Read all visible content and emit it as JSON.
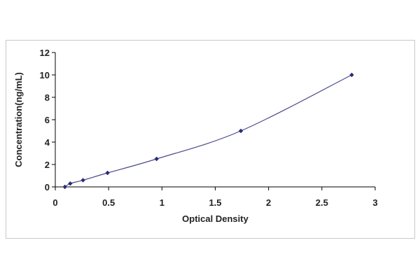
{
  "chart_data": {
    "type": "scatter",
    "title": "",
    "xlabel": "Optical Density",
    "ylabel": "Concentration(ng/mL)",
    "xlim": [
      0,
      3
    ],
    "ylim": [
      0,
      12
    ],
    "x_ticks": [
      0,
      0.5,
      1,
      1.5,
      2,
      2.5,
      3
    ],
    "y_ticks": [
      0,
      2,
      4,
      6,
      8,
      10,
      12
    ],
    "x_tick_labels": [
      "0",
      "0.5",
      "1",
      "1.5",
      "2",
      "2.5",
      "3"
    ],
    "y_tick_labels": [
      "0",
      "2",
      "4",
      "6",
      "8",
      "10",
      "12"
    ],
    "grid": false,
    "legend": "none",
    "series": [
      {
        "points": [
          {
            "x": 0.09,
            "y": 0.0
          },
          {
            "x": 0.14,
            "y": 0.3
          },
          {
            "x": 0.26,
            "y": 0.6
          },
          {
            "x": 0.49,
            "y": 1.25
          },
          {
            "x": 0.95,
            "y": 2.5
          },
          {
            "x": 1.74,
            "y": 5.0
          },
          {
            "x": 2.78,
            "y": 10.0
          }
        ],
        "fit_curve": true,
        "color": "#2b2b7a"
      }
    ]
  }
}
